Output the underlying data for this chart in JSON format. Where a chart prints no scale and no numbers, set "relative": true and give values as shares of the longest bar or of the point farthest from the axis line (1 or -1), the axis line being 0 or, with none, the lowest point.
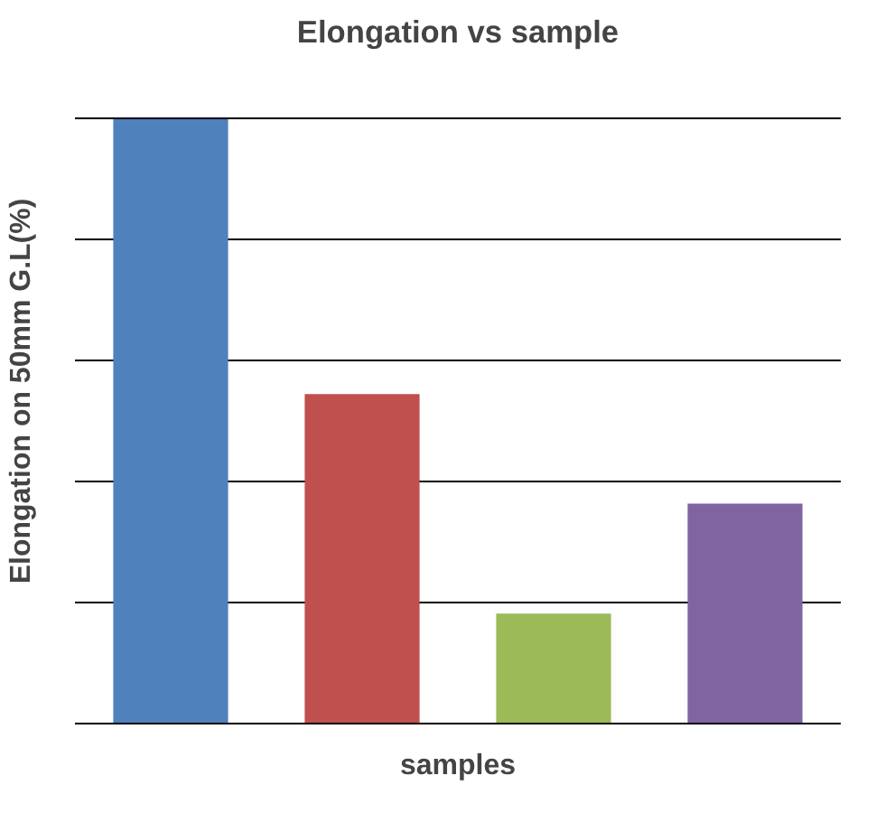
{
  "chart_data": {
    "type": "bar",
    "title": "Elongation vs sample",
    "xlabel": "samples",
    "ylabel": "Elongation on 50mm G.L(%)",
    "categories": [
      null,
      null,
      null,
      null
    ],
    "values": [
      1,
      0.545,
      0.182,
      0.364
    ],
    "colors": [
      "#4f81bd",
      "#c0504d",
      "#9bbb59",
      "#8064a2"
    ],
    "relative": true,
    "grid": "y"
  }
}
